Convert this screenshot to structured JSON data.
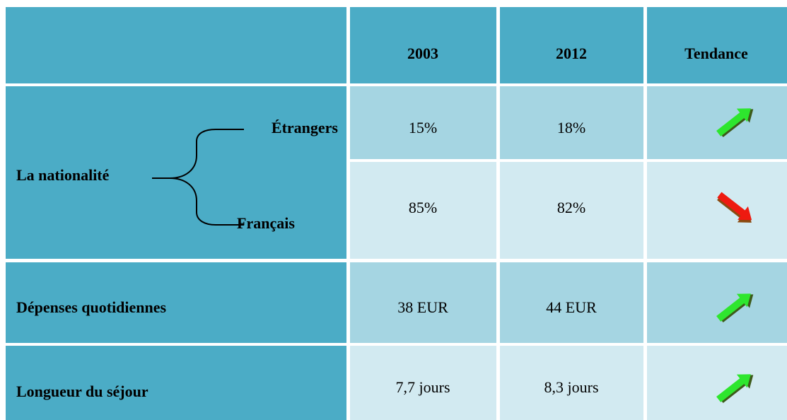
{
  "header": {
    "columns": [
      "2003",
      "2012",
      "Tendance"
    ]
  },
  "rows": [
    {
      "label": "La nationalité",
      "sub": [
        {
          "label": "Étrangers",
          "values": [
            "15%",
            "18%"
          ]
        },
        {
          "label": "Français",
          "values": [
            "85%",
            "82%"
          ]
        }
      ]
    },
    {
      "label": "Dépenses quotidiennes",
      "values": [
        "38 EUR",
        "44 EUR"
      ]
    },
    {
      "label": "Longueur du séjour",
      "values": [
        "7,7 jours",
        "8,3 jours"
      ]
    }
  ]
}
